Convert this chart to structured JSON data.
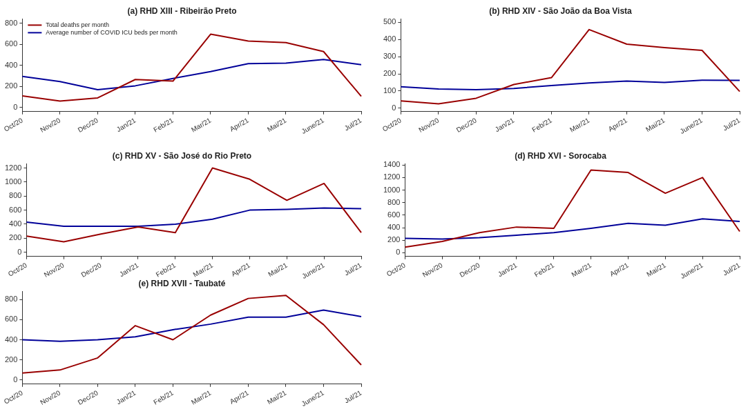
{
  "chart_data": [
    {
      "type": "line",
      "title": "(a) RHD XIII - Ribeirão Preto",
      "categories": [
        "Oct/20",
        "Nov/20",
        "Dec/20",
        "Jan/21",
        "Feb/21",
        "Mar/21",
        "Apr/21",
        "Mai/21",
        "June/21",
        "Jul/21"
      ],
      "ylim": [
        -40,
        840
      ],
      "yticks": [
        0,
        200,
        400,
        600,
        800
      ],
      "grid": false,
      "legend": "top left",
      "marker": "none",
      "series": [
        {
          "name": "Total deaths per month",
          "color": "#990000",
          "values": [
            110,
            60,
            90,
            265,
            250,
            695,
            630,
            615,
            530,
            105
          ]
        },
        {
          "name": "Average number of COVID ICU beds per month",
          "color": "#000099",
          "values": [
            295,
            245,
            168,
            205,
            275,
            340,
            415,
            420,
            455,
            405
          ]
        }
      ]
    },
    {
      "type": "line",
      "title": "(b) RHD XIV - São João da Boa Vista",
      "categories": [
        "Oct/20",
        "Nov/20",
        "Dec/20",
        "Jan/21",
        "Feb/21",
        "Mar/21",
        "Apr/21",
        "Mai/21",
        "June/21",
        "Jul/21"
      ],
      "ylim": [
        -20,
        520
      ],
      "yticks": [
        0,
        100,
        200,
        300,
        400,
        500
      ],
      "grid": false,
      "legend": false,
      "marker": "none",
      "series": [
        {
          "color": "#990000",
          "values": [
            43,
            25,
            58,
            138,
            178,
            458,
            373,
            353,
            337,
            97
          ]
        },
        {
          "color": "#000099",
          "values": [
            125,
            112,
            108,
            115,
            132,
            147,
            158,
            150,
            163,
            162
          ]
        }
      ]
    },
    {
      "type": "line",
      "title": "(c) RHD XV - São José do Rio Preto",
      "categories": [
        "Oct/20",
        "Nov/20",
        "Dec/20",
        "Jan/21",
        "Feb/21",
        "Mar/21",
        "Apr/21",
        "Mai/21",
        "June/21",
        "Jul/21"
      ],
      "ylim": [
        -60,
        1260
      ],
      "yticks": [
        0,
        200,
        400,
        600,
        800,
        1000,
        1200
      ],
      "grid": false,
      "legend": false,
      "marker": "none",
      "series": [
        {
          "color": "#990000",
          "values": [
            230,
            150,
            260,
            360,
            280,
            1200,
            1040,
            740,
            980,
            280
          ]
        },
        {
          "color": "#000099",
          "values": [
            430,
            370,
            370,
            370,
            400,
            470,
            600,
            610,
            630,
            620
          ]
        }
      ]
    },
    {
      "type": "line",
      "title": "(d) RHD XVI - Sorocaba",
      "categories": [
        "Oct/20",
        "Nov/20",
        "Dec/20",
        "Jan/21",
        "Feb/21",
        "Mar/21",
        "Apr/21",
        "Mai/21",
        "June/21",
        "Jul/21"
      ],
      "ylim": [
        -60,
        1420
      ],
      "yticks": [
        0,
        200,
        400,
        600,
        800,
        1000,
        1200,
        1400
      ],
      "grid": false,
      "legend": false,
      "marker": "none",
      "series": [
        {
          "color": "#990000",
          "values": [
            90,
            180,
            320,
            410,
            390,
            1320,
            1280,
            950,
            1200,
            340
          ]
        },
        {
          "color": "#000099",
          "values": [
            230,
            220,
            240,
            280,
            320,
            390,
            470,
            440,
            540,
            500
          ]
        }
      ]
    },
    {
      "type": "line",
      "title": "(e) RHD XVII - Taubaté",
      "categories": [
        "Oct/20",
        "Nov/20",
        "Dec/20",
        "Jan/21",
        "Feb/21",
        "Mar/21",
        "Apr/21",
        "Mai/21",
        "June/21",
        "Jul/21"
      ],
      "ylim": [
        -40,
        880
      ],
      "yticks": [
        0,
        200,
        400,
        600,
        800
      ],
      "grid": false,
      "legend": false,
      "marker": "none",
      "series": [
        {
          "color": "#990000",
          "values": [
            70,
            100,
            220,
            540,
            400,
            645,
            810,
            840,
            550,
            150
          ]
        },
        {
          "color": "#000099",
          "values": [
            400,
            385,
            400,
            430,
            500,
            555,
            625,
            625,
            695,
            630
          ]
        }
      ]
    }
  ]
}
